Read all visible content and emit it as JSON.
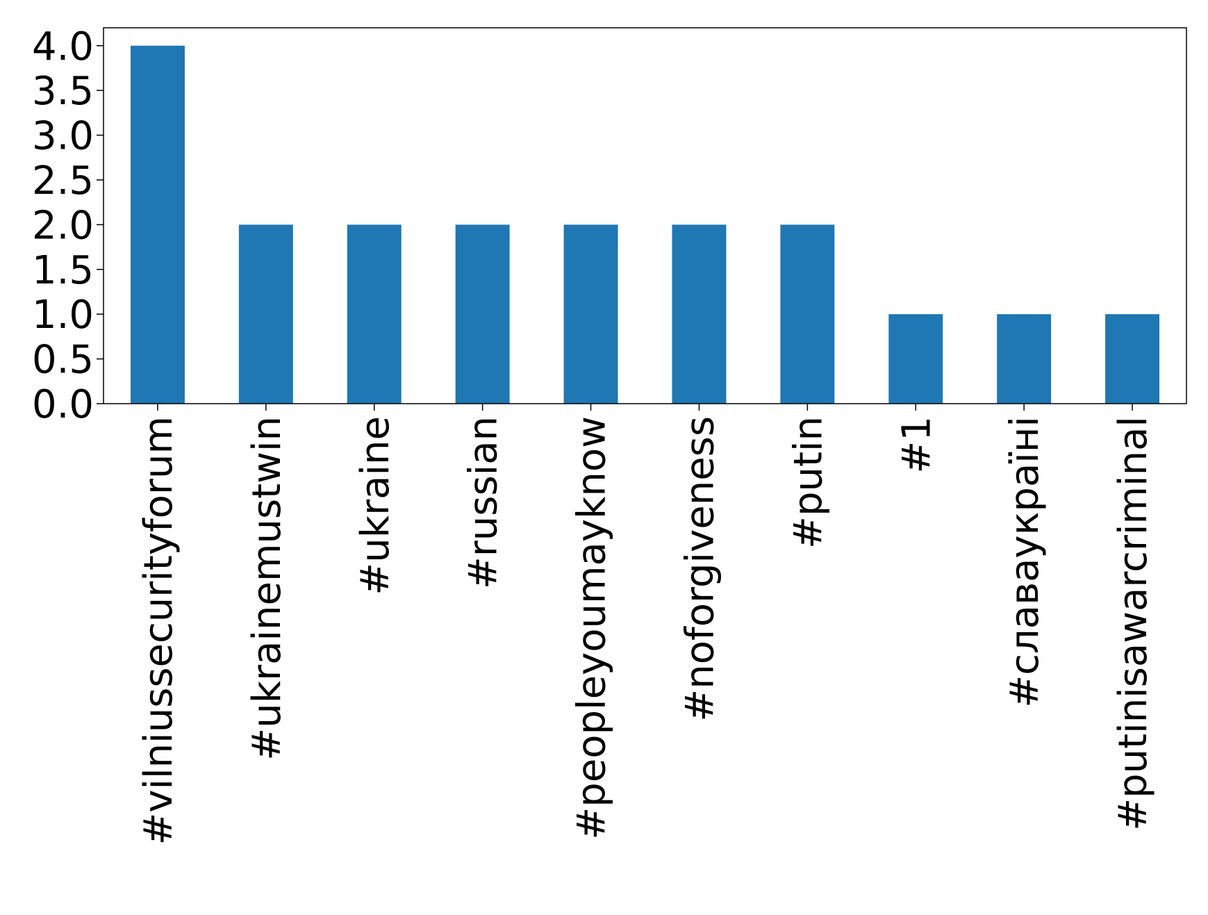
{
  "chart_data": {
    "type": "bar",
    "categories": [
      "#vilniussecurityforum",
      "#ukrainemustwin",
      "#ukraine",
      "#russian",
      "#peopleyoumayknow",
      "#noforgiveness",
      "#putin",
      "#1",
      "#славаукраїні",
      "#putinisawarcriminal"
    ],
    "values": [
      4,
      2,
      2,
      2,
      2,
      2,
      2,
      1,
      1,
      1
    ],
    "color": "#1f77b4",
    "ylim": [
      0,
      4.2
    ],
    "yticks": [
      {
        "value": 0,
        "label": "0.0"
      },
      0.5,
      {
        "value": 1,
        "label": "1.0"
      },
      1.5,
      {
        "value": 2,
        "label": "2.0"
      },
      2.5,
      {
        "value": 3,
        "label": "3.0"
      },
      3.5,
      {
        "value": 4,
        "label": "4.0"
      }
    ]
  }
}
